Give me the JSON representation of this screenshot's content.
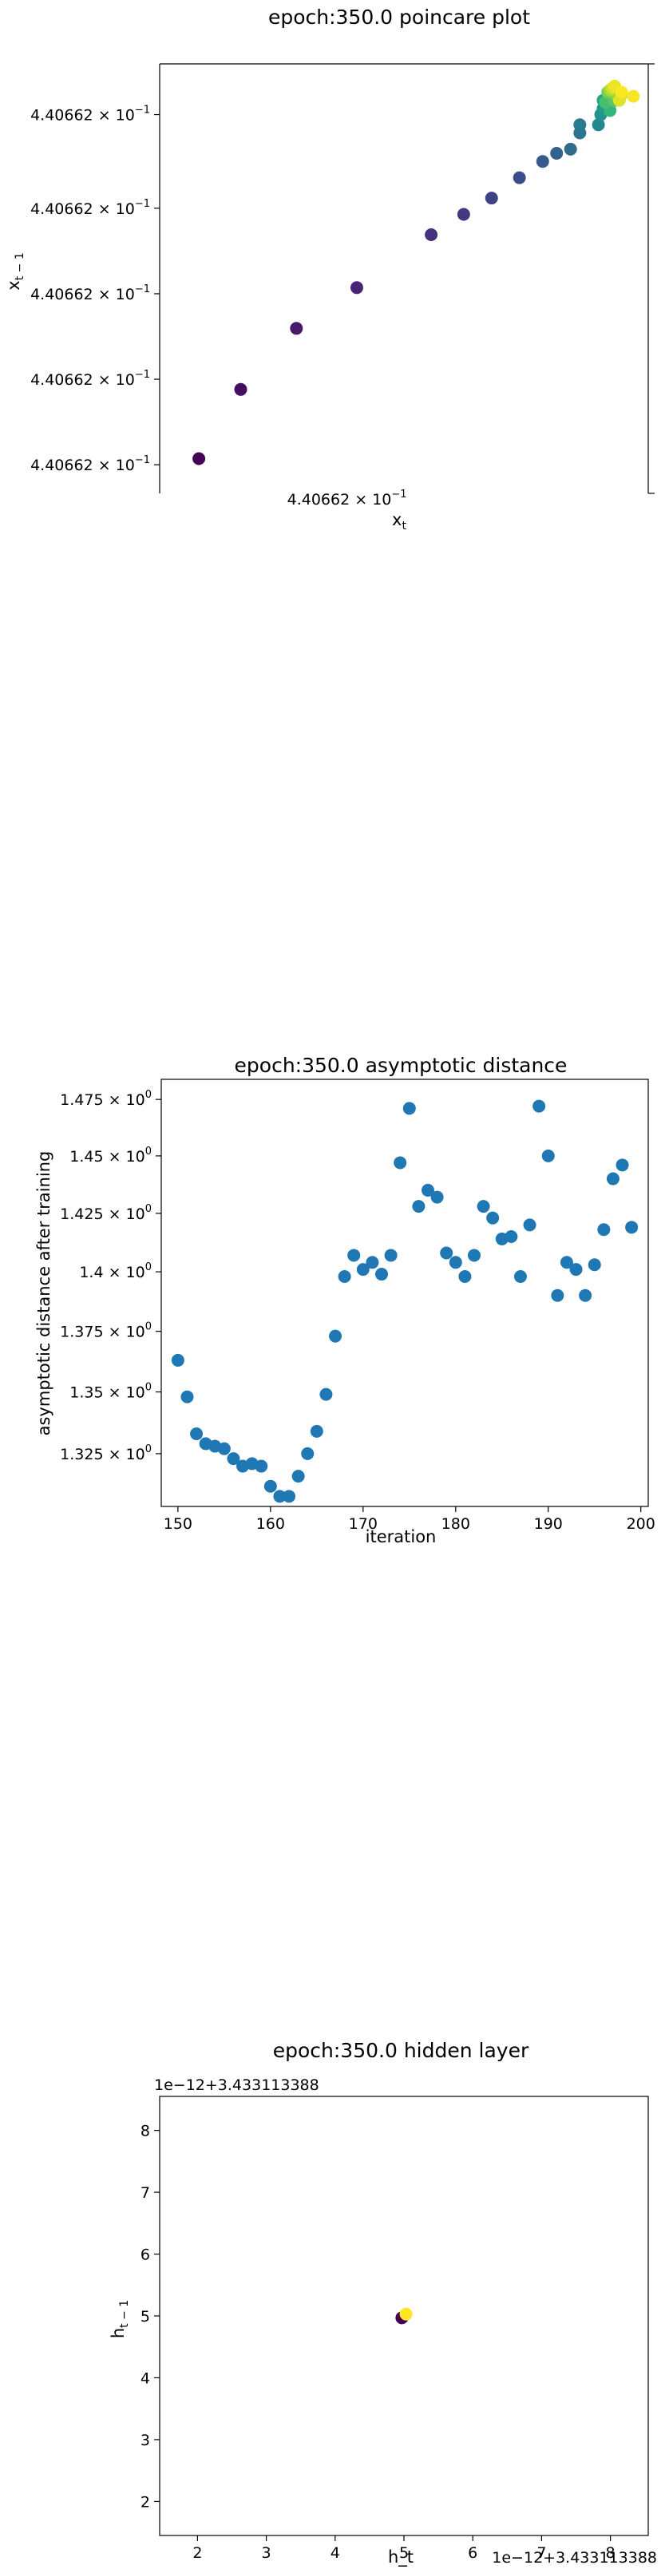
{
  "chart_data": [
    {
      "type": "scatter",
      "title": "epoch:350.0 poincare plot",
      "xlabel": "x",
      "xlabel_sub": "t",
      "ylabel": "x",
      "ylabel_sub": "t − 1",
      "colormap": "viridis",
      "x_ticks": [
        {
          "value": 0.3,
          "label": "4.40662",
          "exp": "−1"
        }
      ],
      "y_ticks": [
        {
          "value": 0.035,
          "label": "4.40662",
          "exp": "−1"
        },
        {
          "value": 0.245,
          "label": "4.40662",
          "exp": "−1"
        },
        {
          "value": 0.455,
          "label": "4.40662",
          "exp": "−1"
        },
        {
          "value": 0.665,
          "label": "4.40662",
          "exp": "−1"
        },
        {
          "value": 0.895,
          "label": "4.40662",
          "exp": "−1"
        }
      ],
      "xlim": [
        0,
        1
      ],
      "ylim": [
        0,
        1
      ],
      "points": [
        {
          "x": 0.05,
          "y": 0.05,
          "c": 0.0
        },
        {
          "x": 0.14,
          "y": 0.22,
          "c": 0.04
        },
        {
          "x": 0.26,
          "y": 0.37,
          "c": 0.07
        },
        {
          "x": 0.39,
          "y": 0.47,
          "c": 0.1
        },
        {
          "x": 0.55,
          "y": 0.6,
          "c": 0.14
        },
        {
          "x": 0.62,
          "y": 0.65,
          "c": 0.17
        },
        {
          "x": 0.68,
          "y": 0.69,
          "c": 0.2
        },
        {
          "x": 0.74,
          "y": 0.74,
          "c": 0.24
        },
        {
          "x": 0.79,
          "y": 0.78,
          "c": 0.28
        },
        {
          "x": 0.82,
          "y": 0.8,
          "c": 0.31
        },
        {
          "x": 0.85,
          "y": 0.81,
          "c": 0.35
        },
        {
          "x": 0.87,
          "y": 0.85,
          "c": 0.38
        },
        {
          "x": 0.87,
          "y": 0.87,
          "c": 0.42
        },
        {
          "x": 0.91,
          "y": 0.87,
          "c": 0.46
        },
        {
          "x": 0.915,
          "y": 0.895,
          "c": 0.5
        },
        {
          "x": 0.92,
          "y": 0.91,
          "c": 0.54
        },
        {
          "x": 0.92,
          "y": 0.93,
          "c": 0.58
        },
        {
          "x": 0.93,
          "y": 0.935,
          "c": 0.62
        },
        {
          "x": 0.935,
          "y": 0.905,
          "c": 0.66
        },
        {
          "x": 0.925,
          "y": 0.925,
          "c": 0.7
        },
        {
          "x": 0.945,
          "y": 0.93,
          "c": 0.74
        },
        {
          "x": 0.93,
          "y": 0.95,
          "c": 0.78
        },
        {
          "x": 0.95,
          "y": 0.94,
          "c": 0.82
        },
        {
          "x": 0.935,
          "y": 0.955,
          "c": 0.86
        },
        {
          "x": 0.96,
          "y": 0.945,
          "c": 0.9
        },
        {
          "x": 0.94,
          "y": 0.96,
          "c": 0.93
        },
        {
          "x": 0.955,
          "y": 0.93,
          "c": 0.95
        },
        {
          "x": 0.945,
          "y": 0.965,
          "c": 0.97
        },
        {
          "x": 0.985,
          "y": 0.94,
          "c": 0.99
        },
        {
          "x": 0.96,
          "y": 0.95,
          "c": 1.0
        }
      ]
    },
    {
      "type": "scatter",
      "title": "epoch:350.0 asymptotic distance",
      "xlabel": "iteration",
      "ylabel": "asymptotic distance after training",
      "xlim": [
        148.2,
        200.8
      ],
      "ylim": [
        1.304,
        1.484
      ],
      "y_scale": "log",
      "color": "#1f77b4",
      "x_ticks": [
        150,
        160,
        170,
        180,
        190,
        200
      ],
      "y_ticks": [
        {
          "value": 1.325,
          "label": "1.325",
          "exp": "0"
        },
        {
          "value": 1.35,
          "label": "1.35",
          "exp": "0"
        },
        {
          "value": 1.375,
          "label": "1.375",
          "exp": "0"
        },
        {
          "value": 1.4,
          "label": "1.4",
          "exp": "0"
        },
        {
          "value": 1.425,
          "label": "1.425",
          "exp": "0"
        },
        {
          "value": 1.45,
          "label": "1.45",
          "exp": "0"
        },
        {
          "value": 1.475,
          "label": "1.475",
          "exp": "0"
        }
      ],
      "x": [
        150,
        151,
        152,
        153,
        154,
        155,
        156,
        157,
        158,
        159,
        160,
        161,
        162,
        163,
        164,
        165,
        166,
        167,
        168,
        169,
        170,
        171,
        172,
        173,
        174,
        175,
        176,
        177,
        178,
        179,
        180,
        181,
        182,
        183,
        184,
        185,
        186,
        187,
        188,
        189,
        190,
        191,
        192,
        193,
        194,
        195,
        196,
        197,
        198,
        199
      ],
      "y": [
        1.363,
        1.348,
        1.333,
        1.329,
        1.328,
        1.327,
        1.323,
        1.32,
        1.321,
        1.32,
        1.312,
        1.308,
        1.308,
        1.316,
        1.325,
        1.334,
        1.349,
        1.373,
        1.398,
        1.407,
        1.401,
        1.404,
        1.399,
        1.407,
        1.447,
        1.471,
        1.428,
        1.435,
        1.432,
        1.408,
        1.404,
        1.398,
        1.407,
        1.428,
        1.423,
        1.414,
        1.415,
        1.398,
        1.42,
        1.472,
        1.45,
        1.39,
        1.404,
        1.401,
        1.39,
        1.403,
        1.418,
        1.44,
        1.446,
        1.419
      ]
    },
    {
      "type": "scatter",
      "title": "epoch:350.0 hidden layer",
      "xlabel": "h_t",
      "ylabel": "h",
      "ylabel_sub": "t − 1",
      "offset_label_x": "1e−12+3.433113388",
      "offset_label_y": "1e−12+3.433113388",
      "xlim": [
        1.45,
        8.55
      ],
      "ylim": [
        1.45,
        8.55
      ],
      "x_ticks": [
        2,
        3,
        4,
        5,
        6,
        7,
        8
      ],
      "y_ticks": [
        2,
        3,
        4,
        5,
        6,
        7,
        8
      ],
      "points": [
        {
          "x": 4.97,
          "y": 4.97,
          "color": "#440154"
        },
        {
          "x": 5.03,
          "y": 5.03,
          "color": "#fde725"
        }
      ]
    }
  ]
}
